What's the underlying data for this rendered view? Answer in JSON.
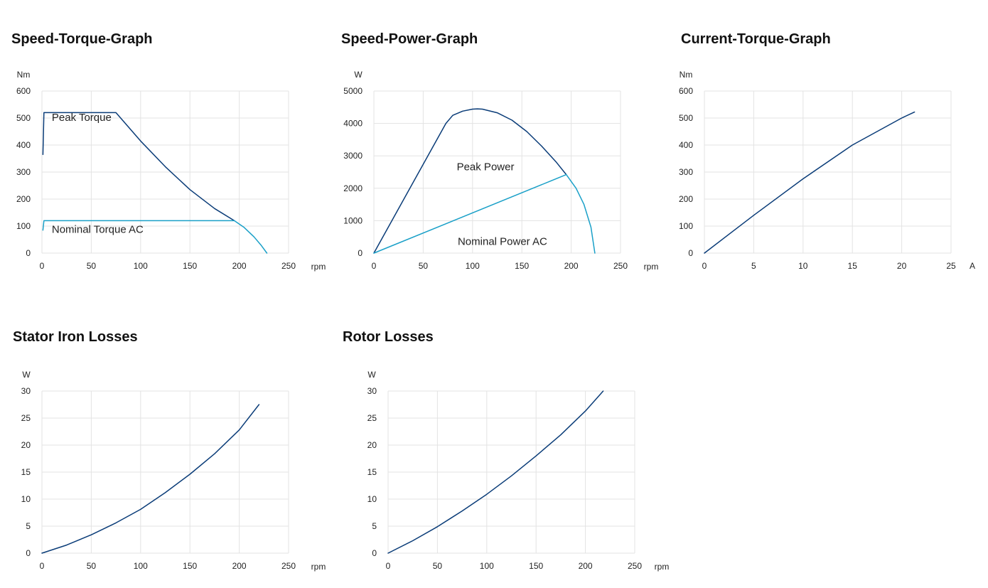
{
  "colors": {
    "dark": "#0a3c78",
    "light": "#1aa0c8",
    "grid": "#e3e3e3"
  },
  "chart_data": [
    {
      "id": "speed-torque",
      "type": "line",
      "title": "Speed-Torque-Graph",
      "xlabel": "rpm",
      "ylabel": "Nm",
      "xlim": [
        0,
        250
      ],
      "ylim": [
        0,
        600
      ],
      "xticks": [
        0,
        50,
        100,
        150,
        200,
        250
      ],
      "yticks": [
        0,
        100,
        200,
        300,
        400,
        500,
        600
      ],
      "grid": true,
      "series": [
        {
          "name": "Peak Torque",
          "color": "dark",
          "x": [
            1,
            2,
            75,
            100,
            125,
            150,
            175,
            195
          ],
          "y": [
            365,
            520,
            520,
            415,
            320,
            235,
            165,
            120
          ]
        },
        {
          "name": "Nominal Torque AC",
          "color": "light",
          "x": [
            1,
            2,
            195,
            205,
            215,
            222,
            228
          ],
          "y": [
            85,
            120,
            120,
            95,
            60,
            30,
            0
          ]
        }
      ],
      "annotations": [
        {
          "text": "Peak Torque",
          "x": 10,
          "y": 490
        },
        {
          "text": "Nominal Torque AC",
          "x": 10,
          "y": 75
        }
      ]
    },
    {
      "id": "speed-power",
      "type": "line",
      "title": "Speed-Power-Graph",
      "xlabel": "rpm",
      "ylabel": "W",
      "xlim": [
        0,
        250
      ],
      "ylim": [
        0,
        5000
      ],
      "xticks": [
        0,
        50,
        100,
        150,
        200,
        250
      ],
      "yticks": [
        0,
        1000,
        2000,
        3000,
        4000,
        5000
      ],
      "grid": true,
      "series": [
        {
          "name": "Peak Power",
          "color": "dark",
          "x": [
            0,
            73,
            80,
            90,
            100,
            105,
            110,
            125,
            140,
            155,
            170,
            185,
            195
          ],
          "y": [
            0,
            4000,
            4250,
            4380,
            4440,
            4450,
            4440,
            4330,
            4100,
            3750,
            3300,
            2800,
            2420
          ]
        },
        {
          "name": "Nominal Power AC",
          "color": "light",
          "x": [
            0,
            195,
            205,
            213,
            220,
            224
          ],
          "y": [
            0,
            2420,
            2000,
            1500,
            800,
            0
          ]
        }
      ],
      "annotations": [
        {
          "text": "Peak Power",
          "x": 84,
          "y": 2560
        },
        {
          "text": "Nominal Power AC",
          "x": 85,
          "y": 250
        }
      ]
    },
    {
      "id": "current-torque",
      "type": "line",
      "title": "Current-Torque-Graph",
      "xlabel": "A",
      "ylabel": "Nm",
      "xlim": [
        0,
        25
      ],
      "ylim": [
        0,
        600
      ],
      "xticks": [
        0,
        5,
        10,
        15,
        20,
        25
      ],
      "yticks": [
        0,
        100,
        200,
        300,
        400,
        500,
        600
      ],
      "grid": true,
      "series": [
        {
          "name": "",
          "color": "dark",
          "x": [
            0,
            5,
            10,
            15,
            20,
            21.3
          ],
          "y": [
            0,
            140,
            275,
            400,
            500,
            522
          ]
        }
      ],
      "annotations": []
    },
    {
      "id": "stator-iron-losses",
      "type": "line",
      "title": "Stator Iron Losses",
      "xlabel": "rpm",
      "ylabel": "W",
      "xlim": [
        0,
        250
      ],
      "ylim": [
        0,
        30
      ],
      "xticks": [
        0,
        50,
        100,
        150,
        200,
        250
      ],
      "yticks": [
        0,
        5,
        10,
        15,
        20,
        25,
        30
      ],
      "grid": true,
      "series": [
        {
          "name": "",
          "color": "dark",
          "x": [
            0,
            25,
            50,
            75,
            100,
            125,
            150,
            175,
            200,
            220
          ],
          "y": [
            0,
            1.5,
            3.4,
            5.6,
            8.1,
            11.2,
            14.6,
            18.4,
            22.8,
            27.5
          ]
        }
      ],
      "annotations": []
    },
    {
      "id": "rotor-losses",
      "type": "line",
      "title": "Rotor Losses",
      "xlabel": "rpm",
      "ylabel": "W",
      "xlim": [
        0,
        250
      ],
      "ylim": [
        0,
        30
      ],
      "xticks": [
        0,
        50,
        100,
        150,
        200,
        250
      ],
      "yticks": [
        0,
        5,
        10,
        15,
        20,
        25,
        30
      ],
      "grid": true,
      "series": [
        {
          "name": "",
          "color": "dark",
          "x": [
            0,
            25,
            50,
            75,
            100,
            125,
            150,
            175,
            200,
            218
          ],
          "y": [
            0,
            2.3,
            4.9,
            7.8,
            10.9,
            14.3,
            18.0,
            21.9,
            26.3,
            30
          ]
        }
      ],
      "annotations": []
    }
  ]
}
